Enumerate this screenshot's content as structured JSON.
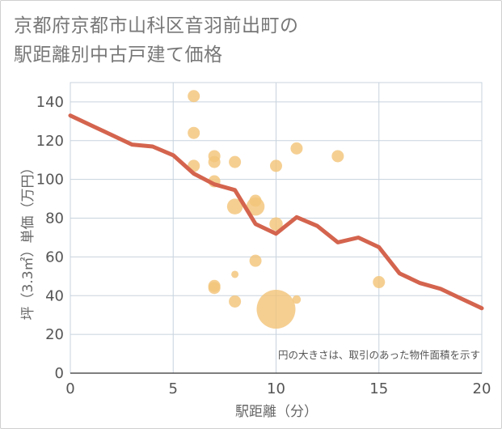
{
  "title_line1": "京都府京都市山科区音羽前出町の",
  "title_line2": "駅距離別中古戸建て価格",
  "chart_data": {
    "type": "scatter",
    "title": "京都府京都市山科区音羽前出町の駅距離別中古戸建て価格",
    "xlabel": "駅距離（分）",
    "ylabel": "坪（3.3㎡）単価（万円）",
    "xlim": [
      0,
      20
    ],
    "ylim": [
      0,
      150
    ],
    "xticks": [
      0,
      5,
      10,
      15,
      20
    ],
    "yticks": [
      0,
      20,
      40,
      60,
      80,
      100,
      120,
      140
    ],
    "grid": true,
    "note": "円の大きさは、取引のあった物件面積を示す",
    "colors": {
      "bubble": "#f3c47a",
      "line": "#d4644e",
      "grid": "#c8d3de"
    },
    "points": [
      {
        "x": 6,
        "y": 143,
        "size": 1
      },
      {
        "x": 6,
        "y": 124,
        "size": 1
      },
      {
        "x": 6,
        "y": 107,
        "size": 1
      },
      {
        "x": 7,
        "y": 112,
        "size": 1
      },
      {
        "x": 7,
        "y": 109,
        "size": 1
      },
      {
        "x": 7,
        "y": 99,
        "size": 1
      },
      {
        "x": 7,
        "y": 45,
        "size": 1
      },
      {
        "x": 7,
        "y": 44,
        "size": 1
      },
      {
        "x": 8,
        "y": 109,
        "size": 1
      },
      {
        "x": 8,
        "y": 86,
        "size": 1.3
      },
      {
        "x": 8,
        "y": 51,
        "size": 0.6
      },
      {
        "x": 8,
        "y": 37,
        "size": 1
      },
      {
        "x": 9,
        "y": 89,
        "size": 1
      },
      {
        "x": 9,
        "y": 86,
        "size": 1.5
      },
      {
        "x": 9,
        "y": 58,
        "size": 1
      },
      {
        "x": 10,
        "y": 107,
        "size": 1
      },
      {
        "x": 10,
        "y": 77,
        "size": 1.1
      },
      {
        "x": 10,
        "y": 33,
        "size": 3.2
      },
      {
        "x": 11,
        "y": 116,
        "size": 1
      },
      {
        "x": 11,
        "y": 38,
        "size": 0.7
      },
      {
        "x": 13,
        "y": 112,
        "size": 1
      },
      {
        "x": 15,
        "y": 47,
        "size": 1
      }
    ],
    "trend": {
      "x": [
        0,
        1,
        2,
        3,
        4,
        5,
        6,
        7,
        8,
        9,
        10,
        11,
        12,
        13,
        14,
        15,
        16,
        17,
        18,
        19,
        20
      ],
      "y": [
        133,
        128,
        123,
        118,
        117,
        112.5,
        103,
        97.5,
        94.5,
        77,
        72,
        80.5,
        76,
        67.5,
        70,
        65,
        51.5,
        46.5,
        43.5,
        38.5,
        33.5
      ]
    }
  }
}
